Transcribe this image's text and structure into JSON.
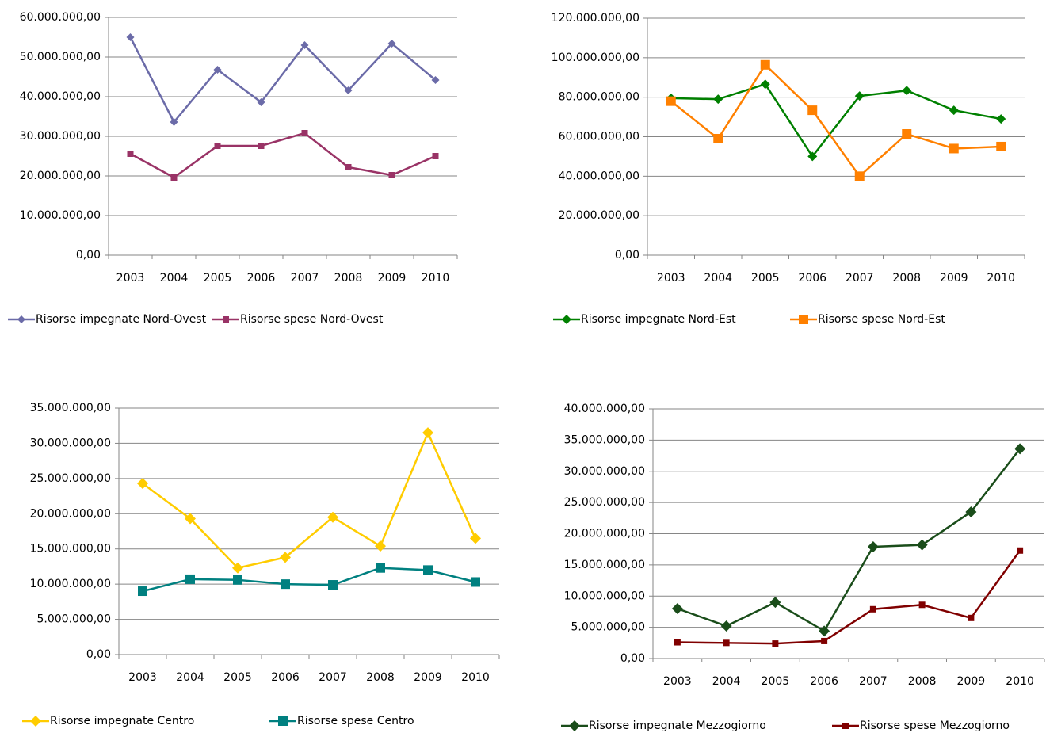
{
  "chart_data": [
    {
      "type": "line",
      "categories": [
        "2003",
        "2004",
        "2005",
        "2006",
        "2007",
        "2008",
        "2009",
        "2010"
      ],
      "ylim": [
        0,
        60000000
      ],
      "yticks": [
        {
          "value": 0,
          "label": "0,00"
        },
        {
          "value": 10000000,
          "label": "10.000.000,00"
        },
        {
          "value": 20000000,
          "label": "20.000.000,00"
        },
        {
          "value": 30000000,
          "label": "30.000.000,00"
        },
        {
          "value": 40000000,
          "label": "40.000.000,00"
        },
        {
          "value": 50000000,
          "label": "50.000.000,00"
        },
        {
          "value": 60000000,
          "label": "60.000.000,00"
        }
      ],
      "grid": true,
      "series": [
        {
          "name": "Risorse impegnate Nord-Ovest",
          "color": "#6b6ba8",
          "marker": "diamond",
          "values": [
            55000000,
            33600000,
            46800000,
            38600000,
            53000000,
            41600000,
            53400000,
            44200000
          ]
        },
        {
          "name": "Risorse spese Nord-Ovest",
          "color": "#993366",
          "marker": "square",
          "values": [
            25600000,
            19600000,
            27600000,
            27600000,
            30800000,
            22200000,
            20200000,
            25000000
          ]
        }
      ]
    },
    {
      "type": "line",
      "categories": [
        "2003",
        "2004",
        "2005",
        "2006",
        "2007",
        "2008",
        "2009",
        "2010"
      ],
      "ylim": [
        0,
        120000000
      ],
      "yticks": [
        {
          "value": 0,
          "label": "0,00"
        },
        {
          "value": 20000000,
          "label": "20.000.000,00"
        },
        {
          "value": 40000000,
          "label": "40.000.000,00"
        },
        {
          "value": 60000000,
          "label": "60.000.000,00"
        },
        {
          "value": 80000000,
          "label": "80.000.000,00"
        },
        {
          "value": 100000000,
          "label": "100.000.000,00"
        },
        {
          "value": 120000000,
          "label": "120.000.000,00"
        }
      ],
      "grid": true,
      "series": [
        {
          "name": "Risorse impegnate Nord-Est",
          "color": "#008000",
          "marker": "diamond",
          "values": [
            79500000,
            79000000,
            86600000,
            50000000,
            80600000,
            83400000,
            73400000,
            69000000
          ]
        },
        {
          "name": "Risorse spese Nord-Est",
          "color": "#ff8000",
          "marker": "square",
          "values": [
            78000000,
            59000000,
            96400000,
            73400000,
            40000000,
            61400000,
            54000000,
            55000000
          ]
        }
      ]
    },
    {
      "type": "line",
      "categories": [
        "2003",
        "2004",
        "2005",
        "2006",
        "2007",
        "2008",
        "2009",
        "2010"
      ],
      "ylim": [
        0,
        35000000
      ],
      "yticks": [
        {
          "value": 0,
          "label": "0,00"
        },
        {
          "value": 5000000,
          "label": "5.000.000,00"
        },
        {
          "value": 10000000,
          "label": "10.000.000,00"
        },
        {
          "value": 15000000,
          "label": "15.000.000,00"
        },
        {
          "value": 20000000,
          "label": "20.000.000,00"
        },
        {
          "value": 25000000,
          "label": "25.000.000,00"
        },
        {
          "value": 30000000,
          "label": "30.000.000,00"
        },
        {
          "value": 35000000,
          "label": "35.000.000,00"
        }
      ],
      "grid": true,
      "series": [
        {
          "name": "Risorse impegnate Centro",
          "color": "#ffcc00",
          "marker": "diamond",
          "values": [
            24300000,
            19300000,
            12300000,
            13800000,
            19500000,
            15400000,
            31500000,
            16500000
          ]
        },
        {
          "name": "Risorse spese Centro",
          "color": "#008080",
          "marker": "square",
          "values": [
            9000000,
            10700000,
            10600000,
            10000000,
            9900000,
            12300000,
            12000000,
            10300000
          ]
        }
      ]
    },
    {
      "type": "line",
      "categories": [
        "2003",
        "2004",
        "2005",
        "2006",
        "2007",
        "2008",
        "2009",
        "2010"
      ],
      "ylim": [
        0,
        40000000
      ],
      "yticks": [
        {
          "value": 0,
          "label": "0,00"
        },
        {
          "value": 5000000,
          "label": "5.000.000,00"
        },
        {
          "value": 10000000,
          "label": "10.000.000,00"
        },
        {
          "value": 15000000,
          "label": "15.000.000,00"
        },
        {
          "value": 20000000,
          "label": "20.000.000,00"
        },
        {
          "value": 25000000,
          "label": "25.000.000,00"
        },
        {
          "value": 30000000,
          "label": "30.000.000,00"
        },
        {
          "value": 35000000,
          "label": "35.000.000,00"
        },
        {
          "value": 40000000,
          "label": "40.000.000,00"
        }
      ],
      "grid": true,
      "series": [
        {
          "name": "Risorse impegnate Mezzogiorno",
          "color": "#1a4d1a",
          "marker": "diamond",
          "values": [
            8000000,
            5200000,
            9000000,
            4400000,
            17900000,
            18200000,
            23500000,
            33600000
          ]
        },
        {
          "name": "Risorse spese Mezzogiorno",
          "color": "#800000",
          "marker": "square",
          "values": [
            2600000,
            2500000,
            2400000,
            2800000,
            7900000,
            8600000,
            6500000,
            17300000
          ]
        }
      ]
    }
  ]
}
